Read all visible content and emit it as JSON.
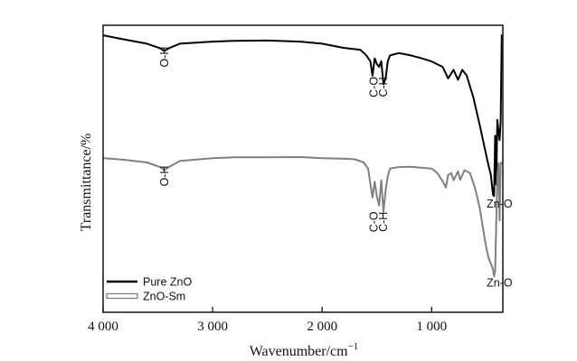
{
  "chart_data": {
    "type": "line",
    "title": "",
    "xlabel": "Wavenumber/cm",
    "xlabel_sup": "−1",
    "ylabel": "Transmittance/%",
    "xlim": [
      4000,
      350
    ],
    "x_ticks": [
      4000,
      3000,
      2000,
      1000
    ],
    "x_tick_labels": [
      "4 000",
      "3 000",
      "2 000",
      "1 000"
    ],
    "y_ticks": false,
    "legend_position": "bottom-left",
    "series": [
      {
        "name": "Pure ZnO",
        "color": "#000000",
        "x": [
          4000,
          3800,
          3600,
          3480,
          3440,
          3400,
          3300,
          3000,
          2800,
          2500,
          2200,
          2000,
          1800,
          1650,
          1600,
          1560,
          1540,
          1520,
          1500,
          1480,
          1460,
          1440,
          1420,
          1400,
          1380,
          1300,
          1200,
          1100,
          1000,
          900,
          850,
          800,
          760,
          720,
          680,
          620,
          560,
          520,
          500,
          480,
          460,
          440,
          430,
          420,
          410,
          400,
          390,
          380,
          370,
          360,
          350
        ],
        "y": [
          96.5,
          95.0,
          93.6,
          92.0,
          91.0,
          92.0,
          93.6,
          94.3,
          94.6,
          94.7,
          94.3,
          93.6,
          92.1,
          91.4,
          89.7,
          87.5,
          82.5,
          88.5,
          86.5,
          85.5,
          87.5,
          79.5,
          81.5,
          87.5,
          89.5,
          90.3,
          89.6,
          88.6,
          87.4,
          85.5,
          81.5,
          84.5,
          81.0,
          84.5,
          82.5,
          75.0,
          65.0,
          58.0,
          54.5,
          51.0,
          48.0,
          41.0,
          40.5,
          61.5,
          44.5,
          67.0,
          63.0,
          60.0,
          66.5,
          96.5,
          95.0
        ]
      },
      {
        "name": "ZnO-Sm",
        "color": "#808080",
        "x": [
          4000,
          3800,
          3600,
          3480,
          3440,
          3400,
          3300,
          3000,
          2800,
          2500,
          2200,
          2000,
          1800,
          1700,
          1620,
          1580,
          1560,
          1540,
          1520,
          1500,
          1480,
          1460,
          1440,
          1420,
          1400,
          1380,
          1300,
          1200,
          1100,
          1000,
          950,
          900,
          870,
          850,
          820,
          800,
          760,
          740,
          700,
          650,
          600,
          560,
          520,
          500,
          480,
          460,
          440,
          430,
          420,
          410,
          400,
          390,
          380,
          370,
          360,
          350
        ],
        "y": [
          53.7,
          53.1,
          52.2,
          50.6,
          49.5,
          50.6,
          52.7,
          53.7,
          54.0,
          54.0,
          54.1,
          53.7,
          53.5,
          53.3,
          52.2,
          50.0,
          44.7,
          40.0,
          45.5,
          40.4,
          37.2,
          46.0,
          35.0,
          42.5,
          47.5,
          50.1,
          50.6,
          50.7,
          50.4,
          50.1,
          48.6,
          45.7,
          43.5,
          47.8,
          48.5,
          46.0,
          49.1,
          46.1,
          49.5,
          48.5,
          42.8,
          36.1,
          26.6,
          22.4,
          18.8,
          17.0,
          15.0,
          12.5,
          14.5,
          31.0,
          47.3,
          52.0,
          32.0,
          52.0,
          52.0,
          52.5
        ]
      }
    ],
    "annotations": [
      {
        "label": "O-H",
        "x": 3440,
        "y": 89.0,
        "vertical": true
      },
      {
        "label": "C-O",
        "x": 1525,
        "y": 78.5,
        "vertical": true
      },
      {
        "label": "C-H",
        "x": 1440,
        "y": 78.5,
        "vertical": true
      },
      {
        "label": "Zn-O",
        "x": 380,
        "y": 36.5,
        "vertical": false
      },
      {
        "label": "O-H",
        "x": 3440,
        "y": 47.5,
        "vertical": true
      },
      {
        "label": "C-O",
        "x": 1525,
        "y": 31.5,
        "vertical": true
      },
      {
        "label": "C-H",
        "x": 1440,
        "y": 31.5,
        "vertical": true
      },
      {
        "label": "Zn-O",
        "x": 380,
        "y": 9.0,
        "vertical": false
      }
    ]
  }
}
